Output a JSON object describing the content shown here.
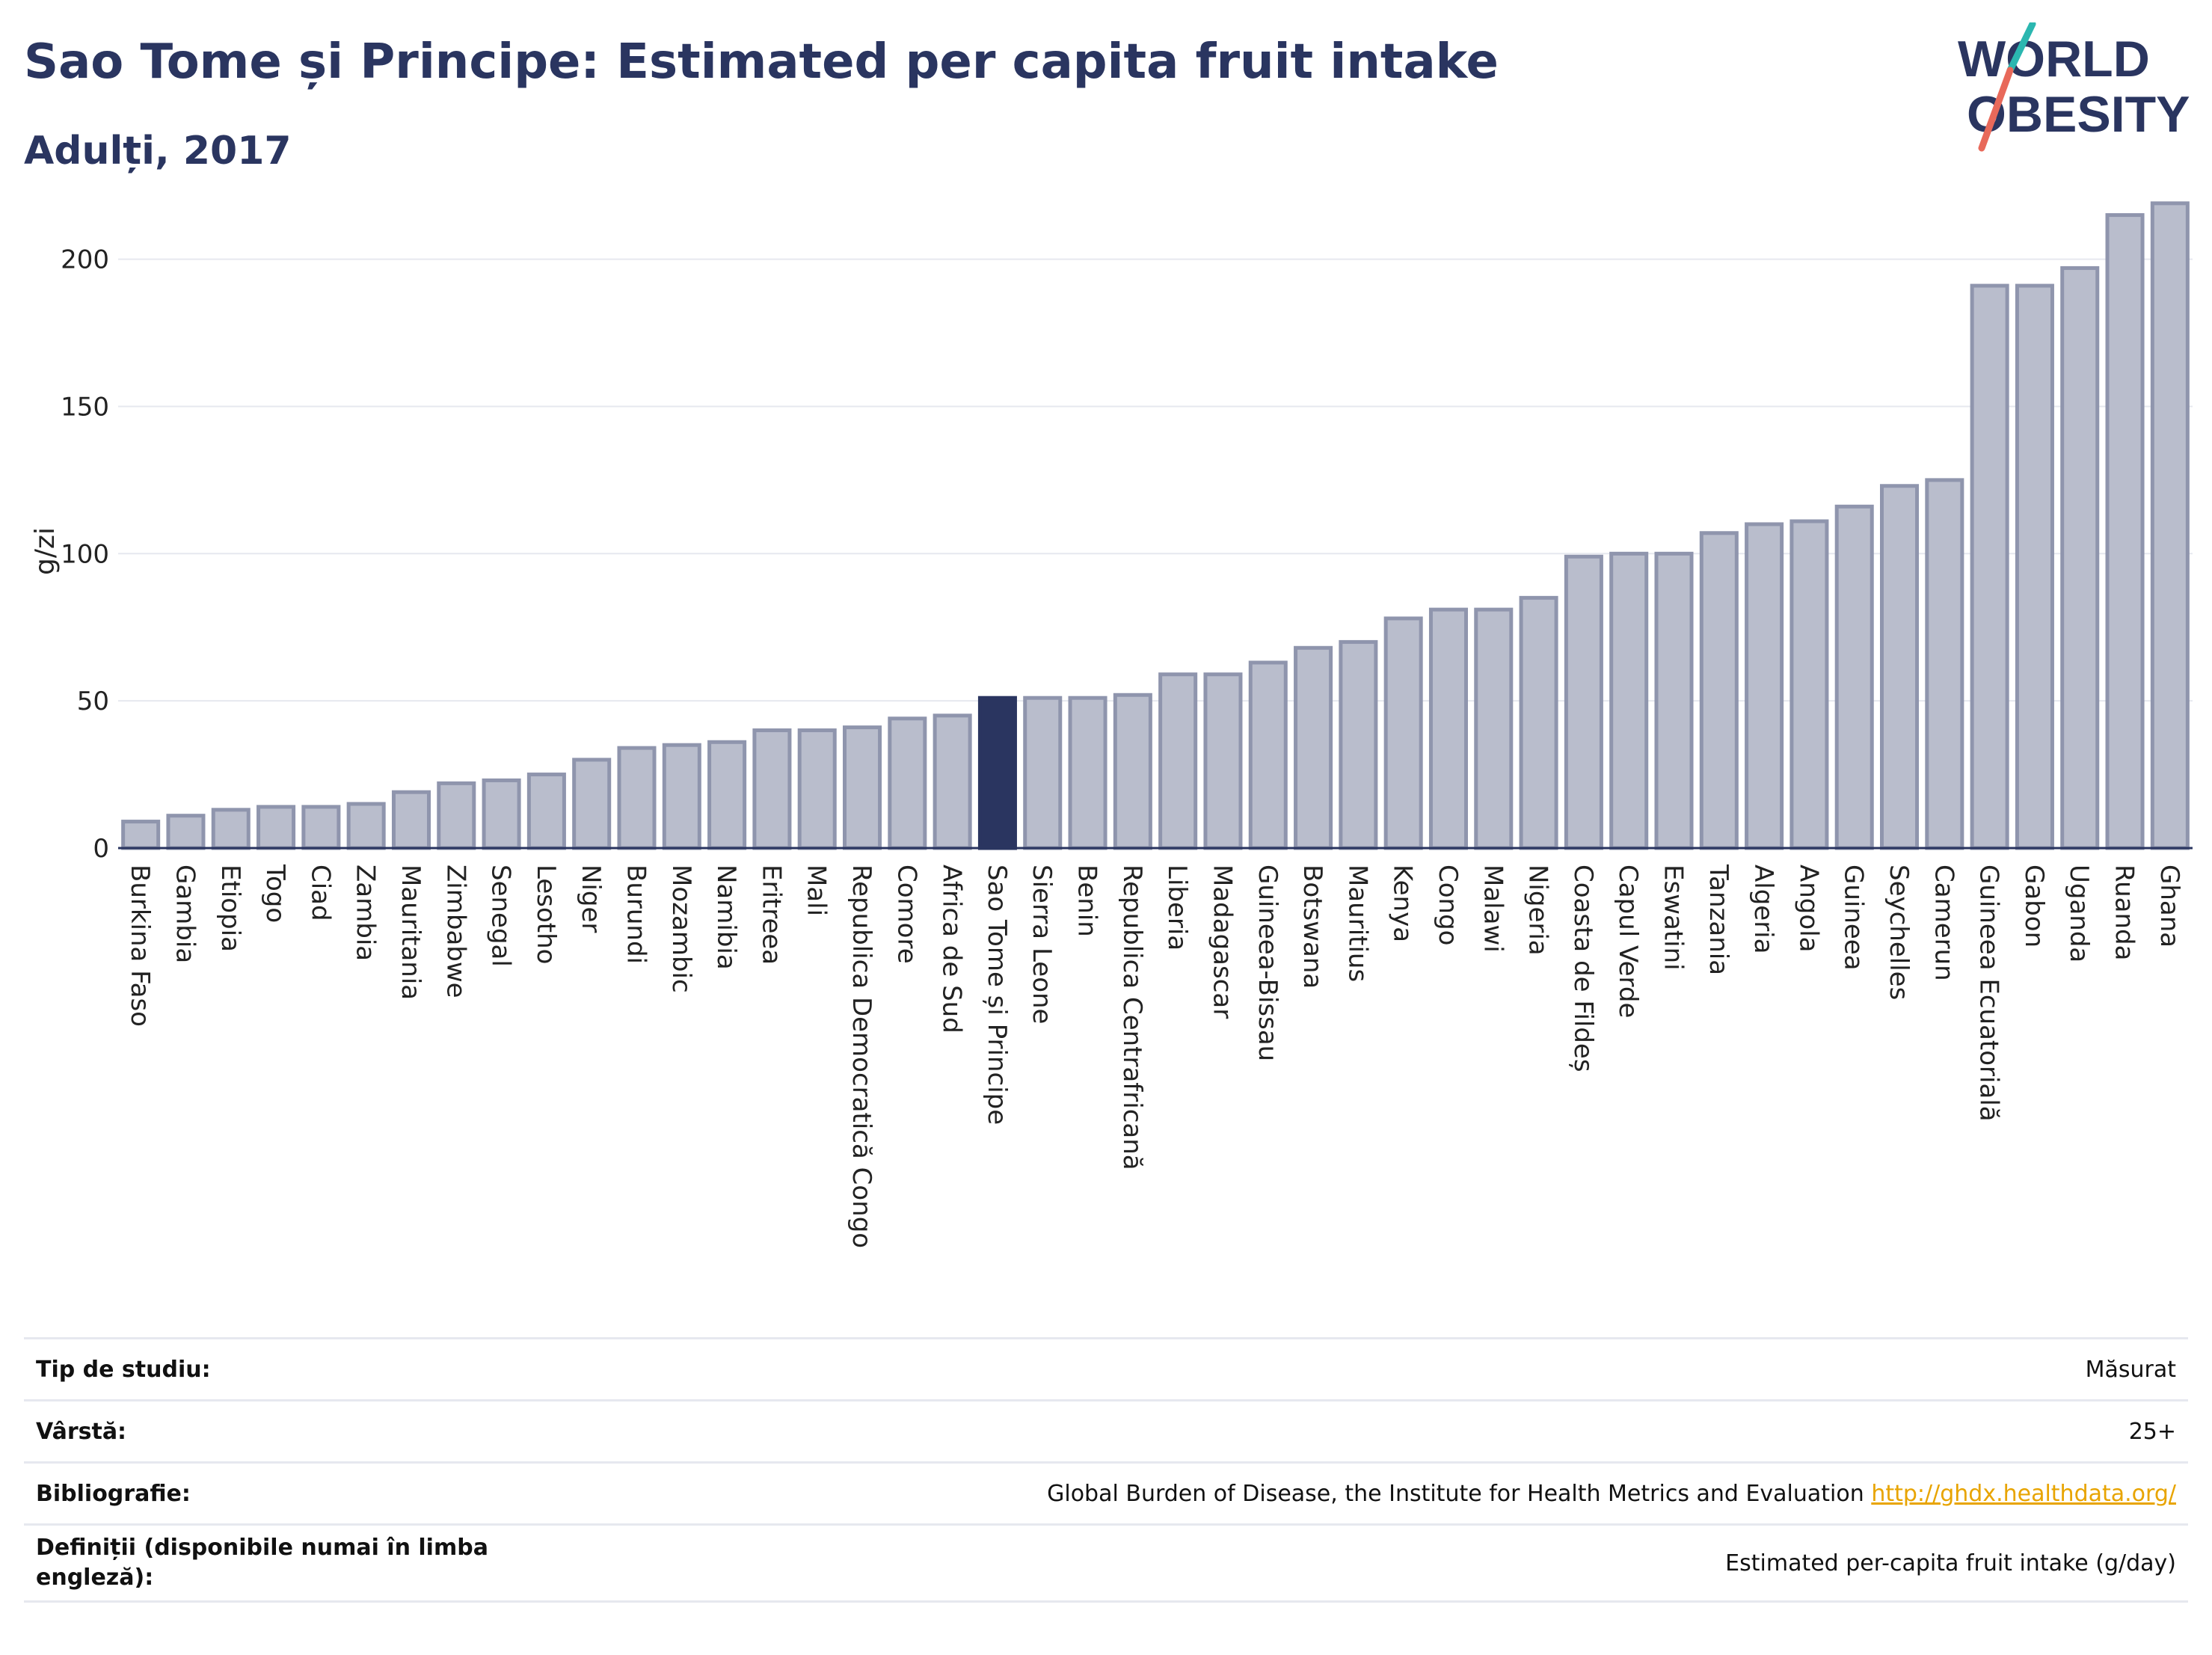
{
  "header": {
    "title": "Sao Tome și Principe: Estimated per capita fruit intake",
    "subtitle": "Adulți, 2017"
  },
  "logo": {
    "line1": "WORLD",
    "line2": "OBESITY"
  },
  "colors": {
    "bar": "#b9bdcc",
    "bar_stroke": "#8f95ad",
    "highlight": "#2a3560",
    "grid": "#e6e8ef",
    "axis": "#2a3560"
  },
  "chart_data": {
    "type": "bar",
    "ylabel": "g/zi",
    "ylim": [
      0,
      222
    ],
    "yticks": [
      0,
      50,
      100,
      150,
      200
    ],
    "highlight": "Sao Tome și Principe",
    "categories": [
      "Burkina Faso",
      "Gambia",
      "Etiopia",
      "Togo",
      "Ciad",
      "Zambia",
      "Mauritania",
      "Zimbabwe",
      "Senegal",
      "Lesotho",
      "Niger",
      "Burundi",
      "Mozambic",
      "Namibia",
      "Eritreea",
      "Mali",
      "Republica Democratică Congo",
      "Comore",
      "Africa de Sud",
      "Sao Tome și Principe",
      "Sierra Leone",
      "Benin",
      "Republica Centrafricană",
      "Liberia",
      "Madagascar",
      "Guineea-Bissau",
      "Botswana",
      "Mauritius",
      "Kenya",
      "Congo",
      "Malawi",
      "Nigeria",
      "Coasta de Fildeș",
      "Capul Verde",
      "Eswatini",
      "Tanzania",
      "Algeria",
      "Angola",
      "Guineea",
      "Seychelles",
      "Camerun",
      "Guineea Ecuatorială",
      "Gabon",
      "Uganda",
      "Ruanda",
      "Ghana"
    ],
    "values": [
      9,
      11,
      13,
      14,
      14,
      15,
      19,
      22,
      23,
      25,
      30,
      34,
      35,
      36,
      40,
      40,
      41,
      44,
      45,
      51,
      51,
      51,
      52,
      59,
      59,
      63,
      68,
      70,
      78,
      81,
      81,
      85,
      99,
      100,
      100,
      107,
      110,
      111,
      116,
      123,
      125,
      191,
      191,
      197,
      215,
      219
    ]
  },
  "info": [
    {
      "label": "Tip de studiu:",
      "value": "Măsurat"
    },
    {
      "label": "Vârstă:",
      "value": "25+"
    },
    {
      "label": "Bibliografie:",
      "value": "Global Burden of Disease, the Institute for Health Metrics and Evaluation",
      "link": "http://ghdx.healthdata.org/"
    },
    {
      "label": "Definiții (disponibile numai în limba engleză):",
      "value": "Estimated per-capita fruit intake (g/day)"
    }
  ]
}
